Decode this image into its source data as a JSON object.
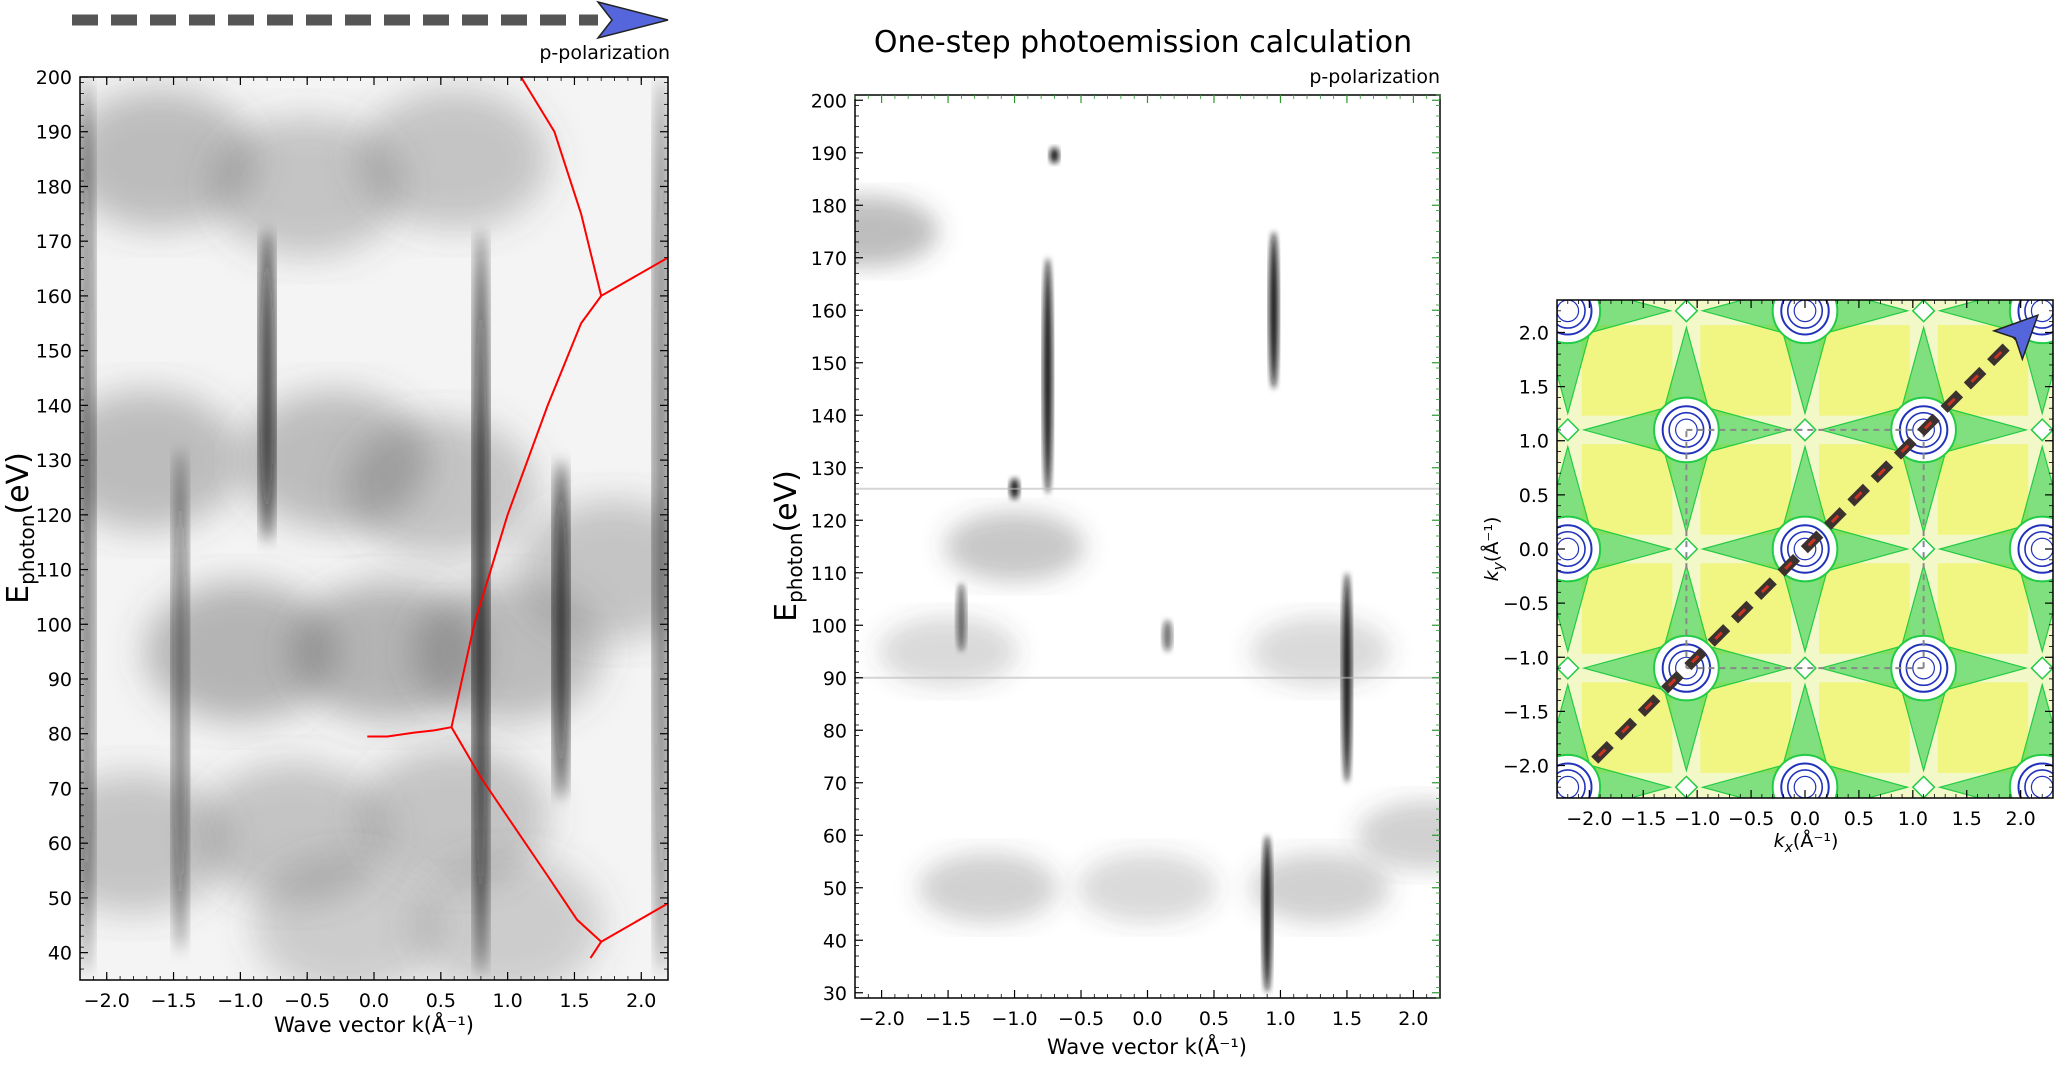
{
  "figure": {
    "title": "One-step photoemission calculation",
    "panels": [
      "left",
      "middle",
      "right"
    ]
  },
  "left_panel": {
    "annotation": "p-polarization",
    "colors": {
      "arrow_shaft": "#555555",
      "arrow_head": "#5566dd",
      "overlay_curve": "#ff0000"
    }
  },
  "middle_panel": {
    "annotation": "p-polarization"
  },
  "chart_data": [
    {
      "type": "heatmap",
      "title": "",
      "xlabel": "Wave vector k(Å⁻¹)",
      "ylabel_main": "E",
      "ylabel_sub": "photon",
      "ylabel_unit": "(eV)",
      "xlim": [
        -2.2,
        2.2
      ],
      "ylim": [
        35,
        200
      ],
      "x_ticks": [
        -2.0,
        -1.5,
        -1.0,
        -0.5,
        0.0,
        0.5,
        1.0,
        1.5,
        2.0
      ],
      "x_tick_labels": [
        "−2.0",
        "−1.5",
        "−1.0",
        "−0.5",
        "0.0",
        "0.5",
        "1.0",
        "1.5",
        "2.0"
      ],
      "y_ticks": [
        40,
        50,
        60,
        70,
        80,
        90,
        100,
        110,
        120,
        130,
        140,
        150,
        160,
        170,
        180,
        190,
        200
      ],
      "y_tick_labels": [
        "40",
        "50",
        "60",
        "70",
        "80",
        "90",
        "100",
        "110",
        "120",
        "130",
        "140",
        "150",
        "160",
        "170",
        "180",
        "190",
        "200"
      ],
      "colormap": "grayscale (dark = high intensity)",
      "features": [
        {
          "x": 0.8,
          "y_range": [
            36,
            172
          ],
          "intensity": "strong"
        },
        {
          "x": -0.8,
          "y_range": [
            115,
            172
          ],
          "intensity": "strong"
        },
        {
          "x": 1.4,
          "y_range": [
            68,
            130
          ],
          "intensity": "strong"
        },
        {
          "x": -1.45,
          "y_range": [
            40,
            132
          ],
          "intensity": "medium"
        },
        {
          "x": -2.15,
          "y_range": [
            36,
            200
          ],
          "intensity": "medium"
        },
        {
          "x": 2.15,
          "y_range": [
            36,
            200
          ],
          "intensity": "medium"
        }
      ],
      "overlay_lines": [
        {
          "name": "",
          "x": [
            -0.05,
            0.1,
            0.3,
            0.45,
            0.58
          ],
          "y": [
            79.5,
            79.5,
            80.2,
            80.6,
            81.2
          ]
        },
        {
          "name": "",
          "x": [
            0.58,
            0.75,
            1.0,
            1.3,
            1.55,
            1.7
          ],
          "y": [
            81.2,
            100,
            120,
            140,
            155,
            160
          ]
        },
        {
          "name": "",
          "x": [
            1.7,
            2.2
          ],
          "y": [
            160,
            167
          ]
        },
        {
          "name": "",
          "x": [
            1.7,
            1.55,
            1.35,
            1.1
          ],
          "y": [
            160,
            175,
            190,
            200
          ]
        },
        {
          "name": "",
          "x": [
            0.58,
            0.8,
            1.05,
            1.3,
            1.52,
            1.7
          ],
          "y": [
            81.2,
            72,
            63,
            54,
            46,
            42
          ]
        },
        {
          "name": "",
          "x": [
            1.7,
            2.2
          ],
          "y": [
            42,
            49
          ]
        },
        {
          "name": "",
          "x": [
            1.7,
            1.62
          ],
          "y": [
            42,
            39
          ]
        }
      ]
    },
    {
      "type": "heatmap",
      "title": "One-step photoemission calculation",
      "xlabel": "Wave vector k(Å⁻¹)",
      "ylabel_main": "E",
      "ylabel_sub": "photon",
      "ylabel_unit": "(eV)",
      "xlim": [
        -2.2,
        2.2
      ],
      "ylim": [
        29,
        201
      ],
      "x_ticks": [
        -2.0,
        -1.5,
        -1.0,
        -0.5,
        0.0,
        0.5,
        1.0,
        1.5,
        2.0
      ],
      "x_tick_labels": [
        "−2.0",
        "−1.5",
        "−1.0",
        "−0.5",
        "0.0",
        "0.5",
        "1.0",
        "1.5",
        "2.0"
      ],
      "y_ticks": [
        30,
        40,
        50,
        60,
        70,
        80,
        90,
        100,
        110,
        120,
        130,
        140,
        150,
        160,
        170,
        180,
        190,
        200
      ],
      "y_tick_labels": [
        "30",
        "40",
        "50",
        "60",
        "70",
        "80",
        "90",
        "100",
        "110",
        "120",
        "130",
        "140",
        "150",
        "160",
        "170",
        "180",
        "190",
        "200"
      ],
      "colormap": "grayscale (dark = high intensity)",
      "features": [
        {
          "x": -0.75,
          "y_range": [
            125,
            170
          ],
          "intensity": "strong"
        },
        {
          "x": 0.95,
          "y_range": [
            145,
            175
          ],
          "intensity": "strong"
        },
        {
          "x": 1.5,
          "y_range": [
            70,
            110
          ],
          "intensity": "strong"
        },
        {
          "x": 0.9,
          "y_range": [
            30,
            60
          ],
          "intensity": "strong"
        },
        {
          "x": -1.0,
          "y_range": [
            124,
            128
          ],
          "intensity": "strong"
        },
        {
          "x": -0.7,
          "y_range": [
            188,
            191
          ],
          "intensity": "strong"
        },
        {
          "x": -1.4,
          "y_range": [
            95,
            108
          ],
          "intensity": "medium"
        },
        {
          "x": 0.15,
          "y_range": [
            95,
            101
          ],
          "intensity": "medium"
        }
      ]
    },
    {
      "type": "heatmap",
      "title": "",
      "xlabel_main": "k",
      "xlabel_sub": "x",
      "xlabel_unit": "(Å⁻¹)",
      "ylabel_main": "k",
      "ylabel_sub": "y",
      "ylabel_unit": "(Å⁻¹)",
      "xlim": [
        -2.3,
        2.3
      ],
      "ylim": [
        -2.3,
        2.3
      ],
      "x_ticks": [
        -2.0,
        -1.5,
        -1.0,
        -0.5,
        0.0,
        0.5,
        1.0,
        1.5,
        2.0
      ],
      "x_tick_labels": [
        "−2.0",
        "−1.5",
        "−1.0",
        "−0.5",
        "0.0",
        "0.5",
        "1.0",
        "1.5",
        "2.0"
      ],
      "y_ticks": [
        -2.0,
        -1.5,
        -1.0,
        -0.5,
        0.0,
        0.5,
        1.0,
        1.5,
        2.0
      ],
      "y_tick_labels": [
        "−2.0",
        "−1.5",
        "−1.0",
        "−0.5",
        "0.0",
        "0.5",
        "1.0",
        "1.5",
        "2.0"
      ],
      "colors": {
        "background": "#f2f8c8",
        "yellow": "#f0f000",
        "green": "#22cc44",
        "blue": "#2233bb",
        "dash_brown": "#3b3230",
        "dash_red": "#cc3322",
        "arrow_head": "#5566dd"
      },
      "zone_centers": [
        [
          -1.1,
          1.1
        ],
        [
          1.1,
          1.1
        ],
        [
          -1.1,
          -1.1
        ],
        [
          1.1,
          -1.1
        ],
        [
          0.0,
          0.0
        ],
        [
          -2.2,
          2.2
        ],
        [
          0.0,
          2.2
        ],
        [
          2.2,
          2.2
        ],
        [
          -2.2,
          0.0
        ],
        [
          2.2,
          0.0
        ],
        [
          -2.2,
          -2.2
        ],
        [
          0.0,
          -2.2
        ],
        [
          2.2,
          -2.2
        ]
      ],
      "cut_direction": {
        "from": [
          -1.95,
          -1.95
        ],
        "to": [
          1.95,
          1.95
        ]
      }
    }
  ]
}
